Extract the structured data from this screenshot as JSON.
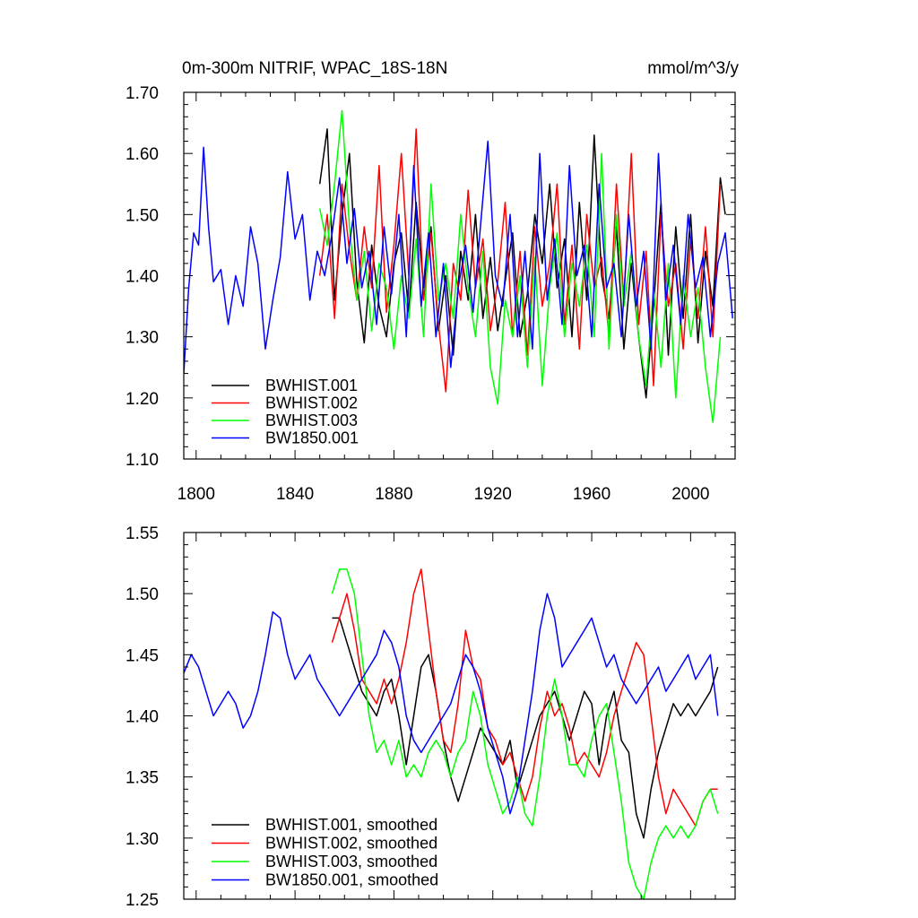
{
  "title_left": "0m-300m NITRIF, WPAC_18S-18N",
  "title_right": "mmol/m^3/y",
  "colors": {
    "BWHIST.001": "#000000",
    "BWHIST.002": "#ff0000",
    "BWHIST.003": "#00ff00",
    "BW1850.001": "#0000ff"
  },
  "chart_data": [
    {
      "type": "line",
      "title": "0m-300m NITRIF, WPAC_18S-18N",
      "units": "mmol/m^3/y",
      "xlim": [
        1795,
        2018
      ],
      "ylim": [
        1.1,
        1.7
      ],
      "xticks": [
        1800,
        1840,
        1880,
        1920,
        1960,
        2000
      ],
      "yticks": [
        1.1,
        1.2,
        1.3,
        1.4,
        1.5,
        1.6,
        1.7
      ],
      "ytick_labels": [
        "1.10",
        "1.20",
        "1.30",
        "1.40",
        "1.50",
        "1.60",
        "1.70"
      ],
      "legend": "bottom-left",
      "series": [
        {
          "name": "BWHIST.001",
          "color": "#000000",
          "x": [
            1850,
            1853,
            1856,
            1859,
            1862,
            1865,
            1868,
            1871,
            1874,
            1877,
            1880,
            1883,
            1886,
            1889,
            1892,
            1895,
            1898,
            1901,
            1904,
            1907,
            1910,
            1913,
            1916,
            1919,
            1922,
            1925,
            1928,
            1931,
            1934,
            1937,
            1940,
            1943,
            1946,
            1949,
            1952,
            1955,
            1958,
            1961,
            1964,
            1967,
            1970,
            1973,
            1976,
            1979,
            1982,
            1985,
            1988,
            1991,
            1994,
            1997,
            2000,
            2003,
            2006,
            2009,
            2012,
            2014
          ],
          "y": [
            1.55,
            1.64,
            1.36,
            1.5,
            1.6,
            1.39,
            1.29,
            1.45,
            1.35,
            1.3,
            1.42,
            1.47,
            1.34,
            1.52,
            1.38,
            1.48,
            1.31,
            1.4,
            1.27,
            1.44,
            1.36,
            1.5,
            1.33,
            1.43,
            1.31,
            1.39,
            1.47,
            1.3,
            1.37,
            1.5,
            1.42,
            1.55,
            1.38,
            1.46,
            1.3,
            1.52,
            1.36,
            1.63,
            1.4,
            1.33,
            1.48,
            1.28,
            1.42,
            1.3,
            1.2,
            1.35,
            1.52,
            1.27,
            1.48,
            1.33,
            1.5,
            1.29,
            1.44,
            1.35,
            1.56,
            1.5
          ]
        },
        {
          "name": "BWHIST.002",
          "color": "#ff0000",
          "x": [
            1850,
            1853,
            1856,
            1859,
            1862,
            1865,
            1868,
            1871,
            1874,
            1877,
            1880,
            1883,
            1886,
            1889,
            1892,
            1895,
            1898,
            1901,
            1904,
            1907,
            1910,
            1913,
            1916,
            1919,
            1922,
            1925,
            1928,
            1931,
            1934,
            1937,
            1940,
            1943,
            1946,
            1949,
            1952,
            1955,
            1958,
            1961,
            1964,
            1967,
            1970,
            1973,
            1976,
            1979,
            1982,
            1985,
            1988,
            1991,
            1994,
            1997,
            2000,
            2003,
            2006,
            2009,
            2012
          ],
          "y": [
            1.4,
            1.5,
            1.33,
            1.55,
            1.44,
            1.36,
            1.48,
            1.38,
            1.58,
            1.34,
            1.45,
            1.6,
            1.4,
            1.64,
            1.36,
            1.47,
            1.32,
            1.21,
            1.42,
            1.36,
            1.54,
            1.38,
            1.46,
            1.31,
            1.39,
            1.52,
            1.3,
            1.44,
            1.27,
            1.48,
            1.35,
            1.42,
            1.55,
            1.32,
            1.45,
            1.28,
            1.5,
            1.38,
            1.43,
            1.3,
            1.55,
            1.36,
            1.6,
            1.32,
            1.44,
            1.22,
            1.5,
            1.35,
            1.42,
            1.28,
            1.46,
            1.33,
            1.48,
            1.3,
            1.55
          ]
        },
        {
          "name": "BWHIST.003",
          "color": "#00ff00",
          "x": [
            1850,
            1853,
            1856,
            1859,
            1862,
            1865,
            1868,
            1871,
            1874,
            1877,
            1880,
            1883,
            1886,
            1889,
            1892,
            1895,
            1898,
            1901,
            1904,
            1907,
            1910,
            1913,
            1916,
            1919,
            1922,
            1925,
            1928,
            1931,
            1934,
            1937,
            1940,
            1943,
            1946,
            1949,
            1952,
            1955,
            1958,
            1961,
            1964,
            1967,
            1970,
            1973,
            1976,
            1979,
            1982,
            1985,
            1988,
            1991,
            1994,
            1997,
            2000,
            2003,
            2006,
            2009,
            2012
          ],
          "y": [
            1.51,
            1.45,
            1.55,
            1.67,
            1.48,
            1.36,
            1.44,
            1.31,
            1.42,
            1.38,
            1.28,
            1.4,
            1.33,
            1.46,
            1.3,
            1.55,
            1.36,
            1.42,
            1.33,
            1.5,
            1.38,
            1.3,
            1.44,
            1.25,
            1.19,
            1.36,
            1.3,
            1.4,
            1.25,
            1.43,
            1.22,
            1.38,
            1.47,
            1.3,
            1.42,
            1.35,
            1.45,
            1.3,
            1.6,
            1.28,
            1.5,
            1.35,
            1.44,
            1.3,
            1.22,
            1.38,
            1.25,
            1.42,
            1.2,
            1.4,
            1.3,
            1.38,
            1.25,
            1.16,
            1.3
          ]
        },
        {
          "name": "BW1850.001",
          "color": "#0000ff",
          "x": [
            1795,
            1797,
            1799,
            1801,
            1803,
            1805,
            1807,
            1810,
            1813,
            1816,
            1819,
            1822,
            1825,
            1828,
            1831,
            1834,
            1837,
            1840,
            1843,
            1846,
            1849,
            1852,
            1855,
            1858,
            1861,
            1864,
            1867,
            1870,
            1873,
            1876,
            1879,
            1882,
            1885,
            1888,
            1891,
            1894,
            1897,
            1900,
            1903,
            1906,
            1909,
            1912,
            1915,
            1918,
            1921,
            1924,
            1927,
            1930,
            1933,
            1936,
            1939,
            1942,
            1945,
            1948,
            1951,
            1954,
            1957,
            1960,
            1963,
            1966,
            1969,
            1972,
            1975,
            1978,
            1981,
            1984,
            1987,
            1990,
            1993,
            1996,
            1999,
            2002,
            2005,
            2008,
            2011,
            2014,
            2017
          ],
          "y": [
            1.24,
            1.38,
            1.47,
            1.45,
            1.61,
            1.48,
            1.39,
            1.41,
            1.32,
            1.4,
            1.35,
            1.48,
            1.42,
            1.28,
            1.36,
            1.43,
            1.57,
            1.46,
            1.5,
            1.36,
            1.44,
            1.4,
            1.47,
            1.56,
            1.42,
            1.51,
            1.38,
            1.44,
            1.32,
            1.48,
            1.37,
            1.5,
            1.3,
            1.58,
            1.35,
            1.47,
            1.3,
            1.42,
            1.25,
            1.38,
            1.45,
            1.34,
            1.48,
            1.62,
            1.4,
            1.35,
            1.5,
            1.3,
            1.44,
            1.28,
            1.6,
            1.36,
            1.46,
            1.32,
            1.58,
            1.4,
            1.45,
            1.3,
            1.55,
            1.38,
            1.42,
            1.3,
            1.5,
            1.35,
            1.44,
            1.28,
            1.6,
            1.36,
            1.45,
            1.32,
            1.5,
            1.38,
            1.43,
            1.3,
            1.42,
            1.47,
            1.33
          ]
        }
      ]
    },
    {
      "type": "line",
      "xlim": [
        1795,
        2018
      ],
      "ylim": [
        1.25,
        1.55
      ],
      "xticks": [
        1800,
        1840,
        1880,
        1920,
        1960,
        2000
      ],
      "yticks": [
        1.25,
        1.3,
        1.35,
        1.4,
        1.45,
        1.5,
        1.55
      ],
      "ytick_labels": [
        "1.25",
        "1.30",
        "1.35",
        "1.40",
        "1.45",
        "1.50",
        "1.55"
      ],
      "legend": "bottom-left",
      "series": [
        {
          "name": "BWHIST.001, smoothed",
          "color": "#000000",
          "x": [
            1855,
            1858,
            1861,
            1864,
            1867,
            1870,
            1873,
            1876,
            1879,
            1882,
            1885,
            1888,
            1891,
            1894,
            1897,
            1900,
            1903,
            1906,
            1909,
            1912,
            1915,
            1918,
            1921,
            1924,
            1927,
            1930,
            1933,
            1936,
            1939,
            1942,
            1945,
            1948,
            1951,
            1954,
            1957,
            1960,
            1963,
            1966,
            1969,
            1972,
            1975,
            1978,
            1981,
            1984,
            1987,
            1990,
            1993,
            1996,
            1999,
            2002,
            2005,
            2008,
            2011
          ],
          "y": [
            1.48,
            1.48,
            1.46,
            1.44,
            1.42,
            1.41,
            1.4,
            1.42,
            1.43,
            1.4,
            1.36,
            1.4,
            1.44,
            1.45,
            1.42,
            1.38,
            1.35,
            1.33,
            1.35,
            1.37,
            1.39,
            1.38,
            1.37,
            1.36,
            1.38,
            1.34,
            1.36,
            1.38,
            1.4,
            1.41,
            1.42,
            1.4,
            1.38,
            1.4,
            1.42,
            1.41,
            1.36,
            1.4,
            1.42,
            1.38,
            1.37,
            1.32,
            1.3,
            1.34,
            1.37,
            1.39,
            1.41,
            1.4,
            1.41,
            1.4,
            1.41,
            1.42,
            1.44
          ]
        },
        {
          "name": "BWHIST.002, smoothed",
          "color": "#ff0000",
          "x": [
            1855,
            1858,
            1861,
            1864,
            1867,
            1870,
            1873,
            1876,
            1879,
            1882,
            1885,
            1888,
            1891,
            1894,
            1897,
            1900,
            1903,
            1906,
            1909,
            1912,
            1915,
            1918,
            1921,
            1924,
            1927,
            1930,
            1933,
            1936,
            1939,
            1942,
            1945,
            1948,
            1951,
            1954,
            1957,
            1960,
            1963,
            1966,
            1969,
            1972,
            1975,
            1978,
            1981,
            1984,
            1987,
            1990,
            1993,
            1996,
            1999,
            2002,
            2005,
            2008,
            2011
          ],
          "y": [
            1.46,
            1.48,
            1.5,
            1.47,
            1.43,
            1.42,
            1.41,
            1.43,
            1.41,
            1.43,
            1.46,
            1.5,
            1.52,
            1.47,
            1.42,
            1.38,
            1.37,
            1.41,
            1.47,
            1.44,
            1.43,
            1.39,
            1.38,
            1.36,
            1.37,
            1.35,
            1.33,
            1.35,
            1.39,
            1.42,
            1.4,
            1.41,
            1.39,
            1.36,
            1.37,
            1.36,
            1.35,
            1.37,
            1.4,
            1.42,
            1.44,
            1.46,
            1.45,
            1.4,
            1.35,
            1.32,
            1.34,
            1.33,
            1.32,
            1.31,
            1.33,
            1.34,
            1.34
          ]
        },
        {
          "name": "BWHIST.003, smoothed",
          "color": "#00ff00",
          "x": [
            1855,
            1858,
            1861,
            1864,
            1867,
            1870,
            1873,
            1876,
            1879,
            1882,
            1885,
            1888,
            1891,
            1894,
            1897,
            1900,
            1903,
            1906,
            1909,
            1912,
            1915,
            1918,
            1921,
            1924,
            1927,
            1930,
            1933,
            1936,
            1939,
            1942,
            1945,
            1948,
            1951,
            1954,
            1957,
            1960,
            1963,
            1966,
            1969,
            1972,
            1975,
            1978,
            1981,
            1984,
            1987,
            1990,
            1993,
            1996,
            1999,
            2002,
            2005,
            2008,
            2011
          ],
          "y": [
            1.5,
            1.52,
            1.52,
            1.5,
            1.45,
            1.4,
            1.37,
            1.38,
            1.36,
            1.38,
            1.35,
            1.36,
            1.35,
            1.37,
            1.38,
            1.37,
            1.35,
            1.37,
            1.38,
            1.42,
            1.4,
            1.36,
            1.34,
            1.32,
            1.33,
            1.35,
            1.32,
            1.31,
            1.35,
            1.4,
            1.43,
            1.4,
            1.36,
            1.36,
            1.35,
            1.38,
            1.4,
            1.41,
            1.37,
            1.33,
            1.28,
            1.26,
            1.25,
            1.28,
            1.3,
            1.31,
            1.3,
            1.31,
            1.3,
            1.31,
            1.33,
            1.34,
            1.32
          ]
        },
        {
          "name": "BW1850.001, smoothed",
          "color": "#0000ff",
          "x": [
            1795,
            1798,
            1801,
            1804,
            1807,
            1810,
            1813,
            1816,
            1819,
            1822,
            1825,
            1828,
            1831,
            1834,
            1837,
            1840,
            1843,
            1846,
            1849,
            1852,
            1855,
            1858,
            1861,
            1864,
            1867,
            1870,
            1873,
            1876,
            1879,
            1882,
            1885,
            1888,
            1891,
            1894,
            1897,
            1900,
            1903,
            1906,
            1909,
            1912,
            1915,
            1918,
            1921,
            1924,
            1927,
            1930,
            1933,
            1936,
            1939,
            1942,
            1945,
            1948,
            1951,
            1954,
            1957,
            1960,
            1963,
            1966,
            1969,
            1972,
            1975,
            1978,
            1981,
            1984,
            1987,
            1990,
            1993,
            1996,
            1999,
            2002,
            2005,
            2008,
            2011
          ],
          "y": [
            1.435,
            1.45,
            1.44,
            1.42,
            1.4,
            1.41,
            1.42,
            1.41,
            1.39,
            1.4,
            1.42,
            1.45,
            1.485,
            1.48,
            1.45,
            1.43,
            1.44,
            1.45,
            1.43,
            1.42,
            1.41,
            1.4,
            1.41,
            1.42,
            1.43,
            1.44,
            1.45,
            1.47,
            1.46,
            1.44,
            1.4,
            1.38,
            1.37,
            1.38,
            1.39,
            1.4,
            1.41,
            1.43,
            1.45,
            1.44,
            1.42,
            1.39,
            1.37,
            1.35,
            1.32,
            1.34,
            1.38,
            1.42,
            1.47,
            1.5,
            1.48,
            1.44,
            1.45,
            1.46,
            1.47,
            1.48,
            1.46,
            1.44,
            1.45,
            1.43,
            1.42,
            1.41,
            1.42,
            1.43,
            1.44,
            1.42,
            1.43,
            1.44,
            1.45,
            1.43,
            1.44,
            1.45,
            1.4
          ]
        }
      ]
    }
  ]
}
